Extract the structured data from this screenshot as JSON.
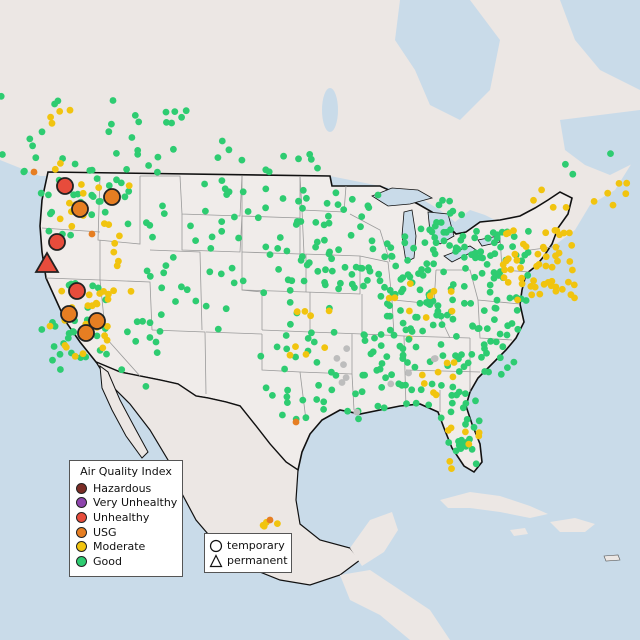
{
  "colors": {
    "water": "#c9dbe9",
    "land": "#ece7e4",
    "us_land": "#f0ecea",
    "border": "#111111",
    "state_line": "#9a9a9a",
    "hazardous": "#7b2d26",
    "very_unhealthy": "#8e44ad",
    "unhealthy": "#e74c3c",
    "usg": "#e67e22",
    "moderate": "#f1c40f",
    "good": "#2ecc71",
    "no_data": "#bdbdbd"
  },
  "legend": {
    "title": "Air Quality Index",
    "items": [
      {
        "label": "Hazardous",
        "color_key": "hazardous"
      },
      {
        "label": "Very Unhealthy",
        "color_key": "very_unhealthy"
      },
      {
        "label": "Unhealthy",
        "color_key": "unhealthy"
      },
      {
        "label": "USG",
        "color_key": "usg"
      },
      {
        "label": "Moderate",
        "color_key": "moderate"
      },
      {
        "label": "Good",
        "color_key": "good"
      }
    ]
  },
  "shape_legend": {
    "items": [
      {
        "label": "temporary",
        "shape": "circle-icon"
      },
      {
        "label": "permanent",
        "shape": "triangle-icon"
      }
    ]
  }
}
